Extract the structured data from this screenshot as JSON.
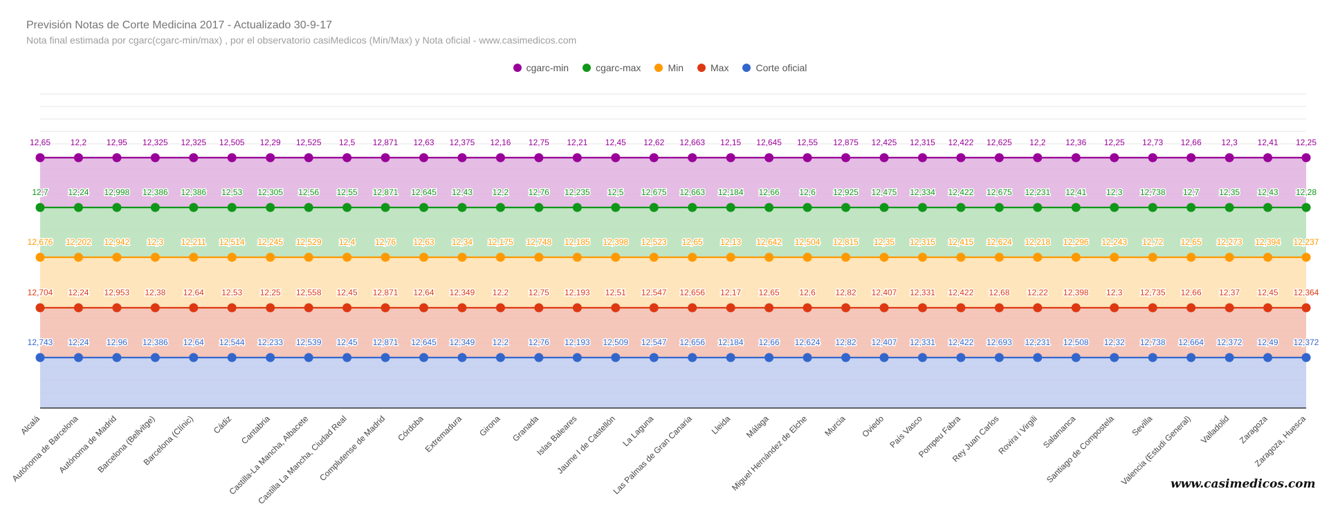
{
  "header": {
    "title": "Previsión Notas de Corte Medicina 2017 - Actualizado 30-9-17",
    "subtitle": "Nota final estimada por cgarc(cgarc-min/max) , por el observatorio casiMedicos (Min/Max) y Nota oficial  - www.casimedicos.com"
  },
  "watermark": "www.casimedicos.com",
  "chart_data": {
    "type": "area",
    "categories": [
      "Alcalá",
      "Autónoma de Barcelona",
      "Autónoma de Madrid",
      "Barcelona (Bellvitge)",
      "Barcelona (Clínic)",
      "Cádiz",
      "Cantabria",
      "Castilla-La Mancha, Albacete",
      "Castilla La Mancha, Ciudad Real",
      "Complutense de Madrid",
      "Córdoba",
      "Extremadura",
      "Girona",
      "Granada",
      "Islas Baleares",
      "Jaume I de Castellón",
      "La Laguna",
      "Las Palmas de Gran Canaria",
      "Lleida",
      "Málaga",
      "Miguel Hernández de Elche",
      "Murcia",
      "Oviedo",
      "País Vasco",
      "Pompeu Fabra",
      "Rey Juan Carlos",
      "Rovira i Virgili",
      "Salamanca",
      "Santiago de Compostela",
      "Sevilla",
      "Valencia (Estudi General)",
      "Valladolid",
      "Zaragoza",
      "Zaragoza, Huesca"
    ],
    "legend_position": "top",
    "grid": true,
    "series": [
      {
        "name": "cgarc-min",
        "color": "#990099",
        "labels": [
          "12,65",
          "12,2",
          "12,95",
          "12,325",
          "12,325",
          "12,505",
          "12,29",
          "12,525",
          "12,5",
          "12,871",
          "12,63",
          "12,375",
          "12,16",
          "12,75",
          "12,21",
          "12,45",
          "12,62",
          "12,663",
          "12,15",
          "12,645",
          "12,55",
          "12,875",
          "12,425",
          "12,315",
          "12,422",
          "12,625",
          "12,2",
          "12,36",
          "12,25",
          "12,73",
          "12,66",
          "12,3",
          "12,41",
          "12,25"
        ]
      },
      {
        "name": "cgarc-max",
        "color": "#109618",
        "labels": [
          "12,7",
          "12,24",
          "12,998",
          "12,386",
          "12,386",
          "12,53",
          "12,305",
          "12,56",
          "12,55",
          "12,871",
          "12,645",
          "12,43",
          "12,2",
          "12,76",
          "12,235",
          "12,5",
          "12,675",
          "12,663",
          "12,184",
          "12,66",
          "12,6",
          "12,925",
          "12,475",
          "12,334",
          "12,422",
          "12,675",
          "12,231",
          "12,41",
          "12,3",
          "12,738",
          "12,7",
          "12,35",
          "12,43",
          "12,28"
        ]
      },
      {
        "name": "Min",
        "color": "#ff9900",
        "labels": [
          "12,676",
          "12,202",
          "12,942",
          "12,3",
          "12,211",
          "12,514",
          "12,245",
          "12,529",
          "12,4",
          "12,76",
          "12,63",
          "12,34",
          "12,175",
          "12,748",
          "12,185",
          "12,398",
          "12,523",
          "12,65",
          "12,13",
          "12,642",
          "12,504",
          "12,815",
          "12,35",
          "12,315",
          "12,415",
          "12,624",
          "12,218",
          "12,296",
          "12,243",
          "12,72",
          "12,65",
          "12,273",
          "12,394",
          "12,237"
        ]
      },
      {
        "name": "Max",
        "color": "#dc3912",
        "labels": [
          "12,704",
          "12,24",
          "12,953",
          "12,38",
          "12,64",
          "12,53",
          "12,25",
          "12,558",
          "12,45",
          "12,871",
          "12,64",
          "12,349",
          "12,2",
          "12,75",
          "12,193",
          "12,51",
          "12,547",
          "12,656",
          "12,17",
          "12,65",
          "12,6",
          "12,82",
          "12,407",
          "12,331",
          "12,422",
          "12,68",
          "12,22",
          "12,398",
          "12,3",
          "12,735",
          "12,66",
          "12,37",
          "12,45",
          "12,364"
        ]
      },
      {
        "name": "Corte oficial",
        "color": "#3366cc",
        "labels": [
          "12,743",
          "12,24",
          "12,96",
          "12,386",
          "12,64",
          "12,544",
          "12,233",
          "12,539",
          "12,45",
          "12,871",
          "12,645",
          "12,349",
          "12,2",
          "12,76",
          "12,193",
          "12,509",
          "12,547",
          "12,656",
          "12,184",
          "12,66",
          "12,624",
          "12,82",
          "12,407",
          "12,331",
          "12,422",
          "12,693",
          "12,231",
          "12,508",
          "12,32",
          "12,738",
          "12,664",
          "12,372",
          "12,49",
          "12,372"
        ]
      }
    ]
  }
}
